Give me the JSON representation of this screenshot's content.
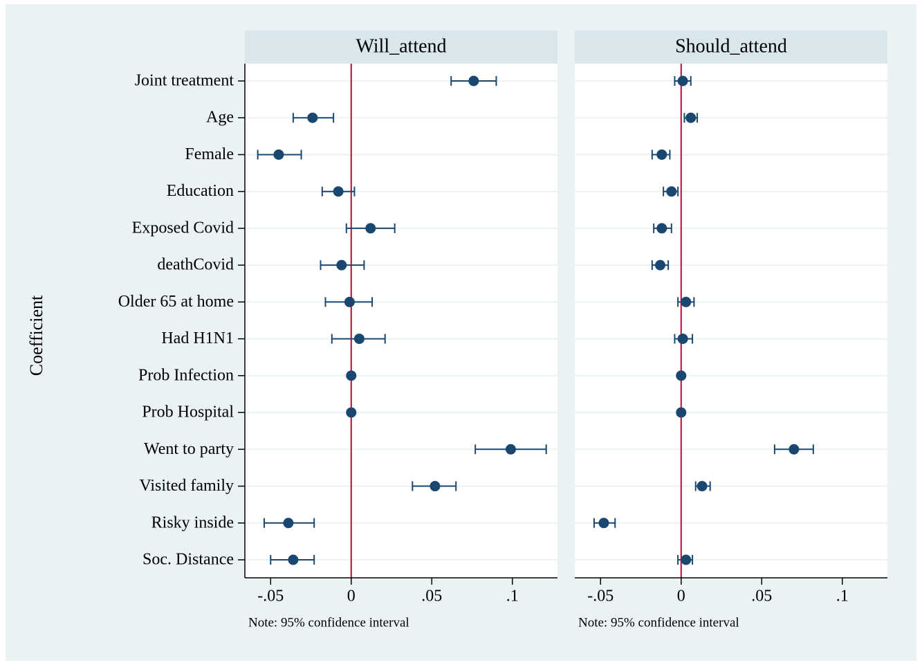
{
  "chart_data": {
    "type": "coefplot",
    "ylabel": "Coefficient",
    "categories": [
      "Joint treatment",
      "Age",
      "Female",
      "Education",
      "Exposed Covid",
      "deathCovid",
      "Older 65 at home",
      "Had H1N1",
      "Prob Infection",
      "Prob Hospital",
      "Went to party",
      "Visited family",
      "Risky inside",
      "Soc. Distance"
    ],
    "xlim": [
      -0.066,
      0.128
    ],
    "xticks": [
      {
        "value": -0.05,
        "label": "-.05"
      },
      0,
      {
        "value": 0.05,
        "label": ".05"
      },
      {
        "value": 0.1,
        "label": ".1"
      }
    ],
    "xline": 0,
    "xline_color": "#c10534",
    "color": "#1a476f",
    "grid": true,
    "panels": [
      {
        "title": "Will_attend",
        "note": "Note: 95% confidence interval",
        "values": [
          0.076,
          -0.024,
          -0.045,
          -0.008,
          0.012,
          -0.006,
          -0.001,
          0.005,
          0,
          0,
          0.099,
          0.052,
          -0.039,
          -0.036
        ],
        "ci_low": [
          0.062,
          -0.036,
          -0.058,
          -0.018,
          -0.003,
          -0.019,
          -0.016,
          -0.012,
          0,
          0,
          0.077,
          0.038,
          -0.054,
          -0.05
        ],
        "ci_high": [
          0.09,
          -0.011,
          -0.031,
          0.002,
          0.027,
          0.008,
          0.013,
          0.021,
          0,
          0,
          0.121,
          0.065,
          -0.023,
          -0.023
        ]
      },
      {
        "title": "Should_attend",
        "note": "Note: 95% confidence interval",
        "values": [
          0.001,
          0.006,
          -0.012,
          -0.006,
          -0.012,
          -0.013,
          0.003,
          0.001,
          0,
          0,
          0.07,
          0.013,
          -0.048,
          0.003
        ],
        "ci_low": [
          -0.004,
          0.002,
          -0.018,
          -0.011,
          -0.017,
          -0.018,
          -0.002,
          -0.004,
          0,
          0,
          0.058,
          0.009,
          -0.054,
          -0.002
        ],
        "ci_high": [
          0.006,
          0.01,
          -0.007,
          -0.002,
          -0.006,
          -0.008,
          0.008,
          0.007,
          0,
          0,
          0.082,
          0.018,
          -0.041,
          0.007
        ]
      }
    ]
  }
}
